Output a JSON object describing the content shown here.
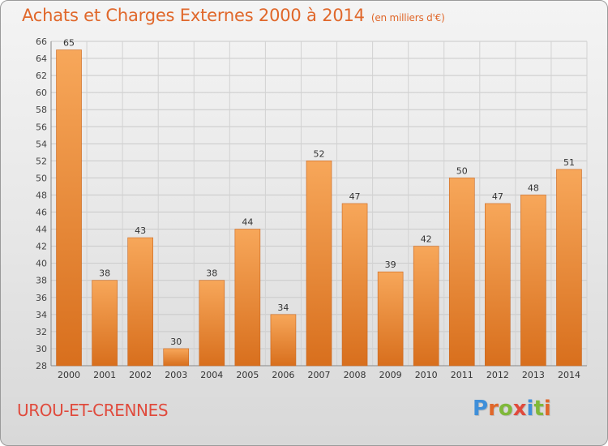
{
  "header": {
    "title": "Achats et Charges Externes 2000 à 2014",
    "subtitle": "(en milliers d'€)"
  },
  "footer": {
    "city": "UROU-ET-CRENNES",
    "logo": "Proxiti"
  },
  "colors": {
    "title": "#e0672a",
    "bar_light": "#f7a75a",
    "bar_dark": "#d86f1d",
    "city": "#e04a3c",
    "logo_letters": [
      "#3f8fd9",
      "#e0672a",
      "#7fb83a",
      "#e04a3c",
      "#3f8fd9",
      "#7fb83a",
      "#e0672a"
    ]
  },
  "chart_data": {
    "type": "bar",
    "title": "Achats et Charges Externes 2000 à 2014",
    "subtitle": "(en milliers d'€)",
    "xlabel": "",
    "ylabel": "",
    "categories": [
      "2000",
      "2001",
      "2002",
      "2003",
      "2004",
      "2005",
      "2006",
      "2007",
      "2008",
      "2009",
      "2010",
      "2011",
      "2012",
      "2013",
      "2014"
    ],
    "values": [
      65,
      38,
      43,
      30,
      38,
      44,
      34,
      52,
      47,
      39,
      42,
      50,
      47,
      48,
      51
    ],
    "ylim": [
      28,
      66
    ],
    "ytick_step": 2,
    "grid": true
  }
}
